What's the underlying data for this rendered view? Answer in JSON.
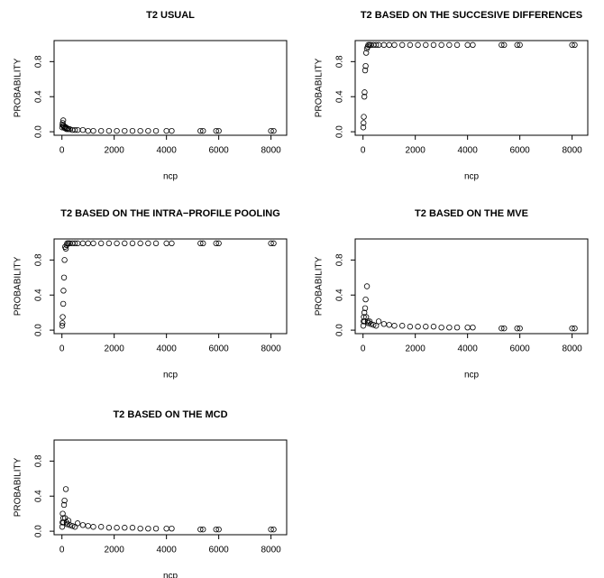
{
  "chart_data": [
    {
      "type": "scatter",
      "title": "T2 USUAL",
      "xlabel": "ncp",
      "ylabel": "PROBABILITY",
      "x": [
        10,
        20,
        30,
        50,
        60,
        80,
        100,
        120,
        150,
        180,
        200,
        250,
        300,
        400,
        500,
        600,
        800,
        1000,
        1200,
        1500,
        1800,
        2100,
        2400,
        2700,
        3000,
        3300,
        3600,
        4000,
        4200,
        5300,
        5400,
        5900,
        6000,
        8000,
        8100
      ],
      "values": [
        0.05,
        0.08,
        0.1,
        0.13,
        0.07,
        0.05,
        0.06,
        0.04,
        0.05,
        0.03,
        0.04,
        0.03,
        0.03,
        0.02,
        0.02,
        0.02,
        0.02,
        0.01,
        0.01,
        0.01,
        0.01,
        0.01,
        0.01,
        0.01,
        0.01,
        0.01,
        0.01,
        0.01,
        0.01,
        0.01,
        0.01,
        0.01,
        0.01,
        0.01,
        0.01
      ],
      "xlim": [
        -300,
        8600
      ],
      "ylim": [
        -0.04,
        1.04
      ],
      "xticks": [
        0,
        2000,
        4000,
        6000,
        8000
      ],
      "yticks": [
        {
          "value": 0,
          "label": "0.0"
        },
        0.4,
        0.8
      ]
    },
    {
      "type": "scatter",
      "title": "T2 BASED ON THE SUCCESIVE DIFFERENCES",
      "xlabel": "ncp",
      "ylabel": "PROBABILITY",
      "x": [
        10,
        20,
        30,
        50,
        60,
        80,
        100,
        120,
        150,
        180,
        200,
        250,
        300,
        400,
        500,
        600,
        800,
        1000,
        1200,
        1500,
        1800,
        2100,
        2400,
        2700,
        3000,
        3300,
        3600,
        4000,
        4200,
        5300,
        5400,
        5900,
        6000,
        8000,
        8100
      ],
      "values": [
        0.05,
        0.1,
        0.17,
        0.4,
        0.45,
        0.7,
        0.75,
        0.9,
        0.95,
        0.97,
        0.99,
        0.99,
        0.99,
        0.99,
        0.99,
        0.99,
        0.99,
        0.99,
        0.99,
        0.99,
        0.99,
        0.99,
        0.99,
        0.99,
        0.99,
        0.99,
        0.99,
        0.99,
        0.99,
        0.99,
        0.99,
        0.99,
        0.99,
        0.99,
        0.99
      ],
      "xlim": [
        -300,
        8600
      ],
      "ylim": [
        -0.04,
        1.04
      ],
      "xticks": [
        0,
        2000,
        4000,
        6000,
        8000
      ],
      "yticks": [
        {
          "value": 0,
          "label": "0.0"
        },
        0.4,
        0.8
      ]
    },
    {
      "type": "scatter",
      "title": "T2 BASED ON THE INTRA−PROFILE POOLING",
      "xlabel": "ncp",
      "ylabel": "PROBABILITY",
      "x": [
        10,
        20,
        30,
        50,
        60,
        80,
        100,
        120,
        150,
        180,
        200,
        250,
        300,
        400,
        500,
        600,
        800,
        1000,
        1200,
        1500,
        1800,
        2100,
        2400,
        2700,
        3000,
        3300,
        3600,
        4000,
        4200,
        5300,
        5400,
        5900,
        6000,
        8000,
        8100
      ],
      "values": [
        0.05,
        0.08,
        0.15,
        0.3,
        0.45,
        0.6,
        0.8,
        0.95,
        0.93,
        0.97,
        0.99,
        0.99,
        0.99,
        0.99,
        0.99,
        0.99,
        0.99,
        0.99,
        0.99,
        0.99,
        0.99,
        0.99,
        0.99,
        0.99,
        0.99,
        0.99,
        0.99,
        0.99,
        0.99,
        0.99,
        0.99,
        0.99,
        0.99,
        0.99,
        0.99
      ],
      "xlim": [
        -300,
        8600
      ],
      "ylim": [
        -0.04,
        1.04
      ],
      "xticks": [
        0,
        2000,
        4000,
        6000,
        8000
      ],
      "yticks": [
        {
          "value": 0,
          "label": "0.0"
        },
        0.4,
        0.8
      ]
    },
    {
      "type": "scatter",
      "title": "T2 BASED ON THE MVE",
      "xlabel": "ncp",
      "ylabel": "PROBABILITY",
      "x": [
        10,
        20,
        30,
        50,
        60,
        80,
        100,
        120,
        150,
        180,
        200,
        250,
        300,
        400,
        500,
        600,
        800,
        1000,
        1200,
        1500,
        1800,
        2100,
        2400,
        2700,
        3000,
        3300,
        3600,
        4000,
        4200,
        5300,
        5400,
        5900,
        6000,
        8000,
        8100
      ],
      "values": [
        0.05,
        0.1,
        0.15,
        0.2,
        0.1,
        0.25,
        0.35,
        0.15,
        0.5,
        0.1,
        0.08,
        0.1,
        0.07,
        0.06,
        0.05,
        0.1,
        0.07,
        0.06,
        0.05,
        0.05,
        0.04,
        0.04,
        0.04,
        0.04,
        0.03,
        0.03,
        0.03,
        0.03,
        0.03,
        0.02,
        0.02,
        0.02,
        0.02,
        0.02,
        0.02
      ],
      "xlim": [
        -300,
        8600
      ],
      "ylim": [
        -0.04,
        1.04
      ],
      "xticks": [
        0,
        2000,
        4000,
        6000,
        8000
      ],
      "yticks": [
        {
          "value": 0,
          "label": "0.0"
        },
        0.4,
        0.8
      ]
    },
    {
      "type": "scatter",
      "title": "T2 BASED ON THE MCD",
      "xlabel": "ncp",
      "ylabel": "PROBABILITY",
      "x": [
        10,
        20,
        30,
        50,
        60,
        80,
        100,
        120,
        150,
        180,
        200,
        250,
        300,
        400,
        500,
        600,
        800,
        1000,
        1200,
        1500,
        1800,
        2100,
        2400,
        2700,
        3000,
        3300,
        3600,
        4000,
        4200,
        5300,
        5400,
        5900,
        6000,
        8000,
        8100
      ],
      "values": [
        0.05,
        0.1,
        0.2,
        0.15,
        0.1,
        0.3,
        0.35,
        0.15,
        0.48,
        0.1,
        0.08,
        0.12,
        0.07,
        0.06,
        0.05,
        0.09,
        0.07,
        0.06,
        0.05,
        0.05,
        0.04,
        0.04,
        0.04,
        0.04,
        0.03,
        0.03,
        0.03,
        0.03,
        0.03,
        0.02,
        0.02,
        0.02,
        0.02,
        0.02,
        0.02
      ],
      "xlim": [
        -300,
        8600
      ],
      "ylim": [
        -0.04,
        1.04
      ],
      "xticks": [
        0,
        2000,
        4000,
        6000,
        8000
      ],
      "yticks": [
        {
          "value": 0,
          "label": "0.0"
        },
        0.4,
        0.8
      ]
    }
  ]
}
